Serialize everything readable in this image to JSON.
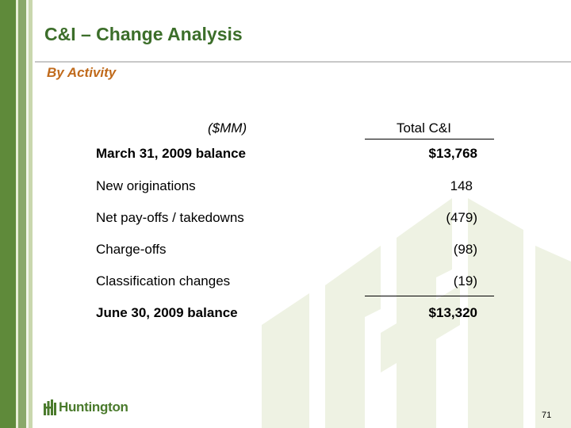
{
  "header": {
    "title": "C&I – Change Analysis",
    "subtitle": "By Activity"
  },
  "table": {
    "units_label": "($MM)",
    "column_label": "Total C&I",
    "rows": [
      {
        "label": "March 31, 2009 balance",
        "value": "$13,768",
        "bold": true
      },
      {
        "label": "New originations",
        "value": "148",
        "bold": false
      },
      {
        "label": "Net pay-offs / takedowns",
        "value": "(479)",
        "bold": false
      },
      {
        "label": "Charge-offs",
        "value": "(98)",
        "bold": false
      },
      {
        "label": "Classification changes",
        "value": "(19)",
        "bold": false
      },
      {
        "label": "June 30, 2009 balance",
        "value": "$13,320",
        "bold": true
      }
    ]
  },
  "footer": {
    "logo_text": "Huntington",
    "page_number": "71"
  },
  "colors": {
    "title": "#3c6e2a",
    "subtitle": "#c06a1b",
    "sidebar": "#5f8a3a",
    "watermark": "#eef2e3"
  }
}
